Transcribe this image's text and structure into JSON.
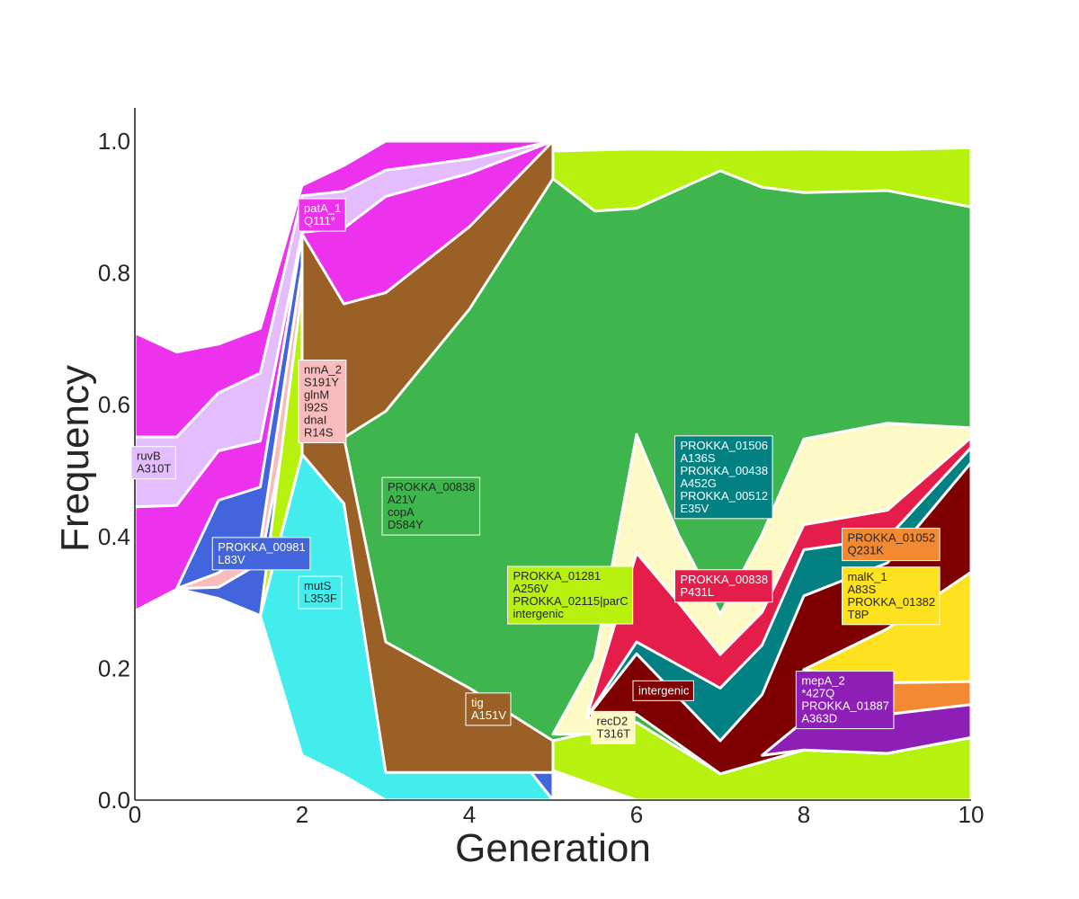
{
  "chart_data": {
    "type": "area",
    "title": "",
    "xlabel": "Generation",
    "ylabel": "Frequency",
    "xlim": [
      0,
      10
    ],
    "ylim": [
      0,
      1.05
    ],
    "xticks": [
      "0",
      "2",
      "4",
      "6",
      "8",
      "10"
    ],
    "yticks": [
      "0.0",
      "0.2",
      "0.4",
      "0.6",
      "0.8",
      "1.0"
    ],
    "grid": false,
    "clones": [
      {
        "id": "ruvB",
        "color": "#ec32ec",
        "upper": [
          [
            0,
            0.709
          ],
          [
            0.5,
            0.68
          ],
          [
            1,
            0.692
          ],
          [
            1.5,
            0.716
          ],
          [
            2,
            0.933
          ],
          [
            2.5,
            0.963
          ],
          [
            3,
            1.0
          ],
          [
            4,
            1.0
          ],
          [
            5,
            1.0
          ]
        ],
        "lower": [
          [
            0,
            0.287
          ],
          [
            0.5,
            0.32
          ],
          [
            1,
            0.306
          ],
          [
            1.5,
            0.28
          ],
          [
            2,
            0.068
          ],
          [
            2.5,
            0.037
          ],
          [
            3,
            0.0
          ],
          [
            4,
            0.0
          ],
          [
            5,
            0.0
          ]
        ]
      },
      {
        "id": "patA",
        "color": "#e3bdfd",
        "upper": [
          [
            0,
            0.551
          ],
          [
            0.5,
            0.551
          ],
          [
            1,
            0.618
          ],
          [
            1.5,
            0.648
          ],
          [
            2,
            0.917
          ],
          [
            2.5,
            0.924
          ],
          [
            3,
            0.956
          ],
          [
            4,
            0.973
          ],
          [
            5,
            1.0
          ]
        ],
        "lower": [
          [
            0,
            0.445
          ],
          [
            0.5,
            0.447
          ],
          [
            1,
            0.53
          ],
          [
            1.5,
            0.545
          ],
          [
            2,
            0.862
          ],
          [
            2.5,
            0.868
          ],
          [
            3,
            0.916
          ],
          [
            4,
            0.951
          ],
          [
            5,
            1.0
          ]
        ]
      },
      {
        "id": "cyan",
        "color": "#44eded",
        "upper": [
          [
            1.5,
            0.28
          ],
          [
            2,
            0.525
          ],
          [
            2.5,
            0.45
          ],
          [
            3,
            0.188
          ],
          [
            4,
            0.16
          ],
          [
            5,
            0.0
          ]
        ],
        "lower": [
          [
            1.5,
            0.28
          ],
          [
            2,
            0.068
          ],
          [
            2.5,
            0.037
          ],
          [
            3,
            0.0
          ],
          [
            4,
            0.0
          ],
          [
            5,
            0.0
          ],
          [
            5.95,
            0.0
          ]
        ]
      },
      {
        "id": "blue",
        "color": "#4264dc",
        "upper": [
          [
            0.5,
            0.321
          ],
          [
            1,
            0.455
          ],
          [
            1.5,
            0.475
          ],
          [
            2,
            0.859
          ],
          [
            2.5,
            0.722
          ],
          [
            3,
            0.752
          ],
          [
            4,
            0.866
          ],
          [
            5,
            1.0
          ]
        ],
        "lower": [
          [
            0.5,
            0.321
          ],
          [
            1,
            0.306
          ],
          [
            1.5,
            0.28
          ],
          [
            2,
            0.525
          ],
          [
            2.5,
            0.45
          ],
          [
            3,
            0.188
          ],
          [
            4,
            0.16
          ],
          [
            5,
            0.0
          ]
        ]
      },
      {
        "id": "pink",
        "color": "#f8bcbc",
        "upper": [
          [
            0.5,
            0.321
          ],
          [
            1,
            0.345
          ],
          [
            1.5,
            0.39
          ],
          [
            2,
            0.81
          ],
          [
            2.5,
            0.72
          ],
          [
            3,
            0.74
          ],
          [
            4,
            0.846
          ],
          [
            5,
            1.0
          ]
        ],
        "lower": [
          [
            0.5,
            0.321
          ],
          [
            1,
            0.323
          ],
          [
            1.5,
            0.36
          ],
          [
            2,
            0.69
          ],
          [
            2.5,
            0.55
          ],
          [
            3,
            0.595
          ],
          [
            4,
            0.743
          ],
          [
            5,
            0.94
          ]
        ]
      },
      {
        "id": "lime",
        "color": "#b6f20d",
        "upper": [
          [
            1.5,
            0.28
          ],
          [
            2,
            0.776
          ],
          [
            2.5,
            0.55
          ],
          [
            3,
            0.627
          ],
          [
            4,
            0.78
          ],
          [
            5,
            0.985
          ],
          [
            6,
            0.988
          ],
          [
            7,
            0.987
          ],
          [
            8,
            0.988
          ],
          [
            9,
            0.987
          ],
          [
            10,
            0.99
          ]
        ],
        "lower": [
          [
            1.5,
            0.28
          ],
          [
            2,
            0.525
          ],
          [
            2.5,
            0.45
          ],
          [
            3,
            0.188
          ],
          [
            4,
            0.16
          ],
          [
            5,
            0.045
          ],
          [
            6,
            0.0
          ],
          [
            7,
            0.0
          ],
          [
            8,
            0.0
          ],
          [
            9,
            0.0
          ],
          [
            10,
            0.0
          ]
        ]
      },
      {
        "id": "tig",
        "color": "#9a6025",
        "upper": [
          [
            2,
            0.859
          ],
          [
            2.5,
            0.753
          ],
          [
            3,
            0.77
          ],
          [
            4,
            0.87
          ],
          [
            5,
            1.0
          ]
        ],
        "lower": [
          [
            2,
            0.525
          ],
          [
            2.5,
            0.45
          ],
          [
            3,
            0.042
          ],
          [
            4,
            0.042
          ],
          [
            5,
            0.042
          ]
        ]
      },
      {
        "id": "green",
        "color": "#3fb54e",
        "upper": [
          [
            2.5,
            0.55
          ],
          [
            3,
            0.59
          ],
          [
            4,
            0.745
          ],
          [
            5,
            0.943
          ],
          [
            5.5,
            0.894
          ],
          [
            6,
            0.898
          ],
          [
            7,
            0.955
          ],
          [
            7.5,
            0.93
          ],
          [
            8,
            0.922
          ],
          [
            9,
            0.925
          ],
          [
            10,
            0.9
          ]
        ],
        "lower": [
          [
            2.5,
            0.55
          ],
          [
            3,
            0.24
          ],
          [
            4,
            0.17
          ],
          [
            5,
            0.09
          ],
          [
            6,
            0.118
          ],
          [
            7,
            0.04
          ],
          [
            8,
            0.076
          ],
          [
            9,
            0.071
          ],
          [
            10,
            0.095
          ]
        ]
      },
      {
        "id": "yellow",
        "color": "#fefac6",
        "upper": [
          [
            5,
            0.1
          ],
          [
            5.5,
            0.215
          ],
          [
            6,
            0.555
          ],
          [
            6.5,
            0.403
          ],
          [
            7,
            0.282
          ],
          [
            7.5,
            0.403
          ],
          [
            8,
            0.548
          ],
          [
            9,
            0.572
          ],
          [
            10,
            0.565
          ]
        ],
        "lower": [
          [
            5,
            0.1
          ],
          [
            5.5,
            0.1
          ],
          [
            6,
            0.2
          ],
          [
            7,
            0.04
          ],
          [
            8,
            0.076
          ],
          [
            9,
            0.071
          ],
          [
            10,
            0.095
          ]
        ]
      },
      {
        "id": "crimson",
        "color": "#e51d4b",
        "upper": [
          [
            5.4,
            0.125
          ],
          [
            6,
            0.375
          ],
          [
            6.5,
            0.3
          ],
          [
            7,
            0.221
          ],
          [
            7.5,
            0.285
          ],
          [
            8,
            0.418
          ],
          [
            9,
            0.44
          ],
          [
            10,
            0.55
          ]
        ],
        "lower": [
          [
            5.4,
            0.125
          ],
          [
            6,
            0.2
          ],
          [
            7,
            0.04
          ],
          [
            8,
            0.076
          ],
          [
            9,
            0.071
          ],
          [
            10,
            0.095
          ]
        ]
      },
      {
        "id": "teal",
        "color": "#028082",
        "upper": [
          [
            5.4,
            0.125
          ],
          [
            6,
            0.24
          ],
          [
            7,
            0.17
          ],
          [
            7.5,
            0.235
          ],
          [
            8,
            0.38
          ],
          [
            9,
            0.398
          ],
          [
            10,
            0.535
          ]
        ],
        "lower": [
          [
            5.4,
            0.125
          ],
          [
            6,
            0.2
          ],
          [
            7,
            0.04
          ],
          [
            8,
            0.076
          ],
          [
            9,
            0.071
          ],
          [
            10,
            0.095
          ]
        ]
      },
      {
        "id": "maroon",
        "color": "#7f0000",
        "upper": [
          [
            5.4,
            0.125
          ],
          [
            6,
            0.222
          ],
          [
            7,
            0.09
          ],
          [
            7.5,
            0.16
          ],
          [
            8,
            0.31
          ],
          [
            9,
            0.36
          ],
          [
            10,
            0.512
          ]
        ],
        "lower": [
          [
            5.4,
            0.125
          ],
          [
            6,
            0.13
          ],
          [
            7,
            0.04
          ],
          [
            8,
            0.076
          ],
          [
            9,
            0.071
          ],
          [
            10,
            0.095
          ]
        ]
      },
      {
        "id": "gold",
        "color": "#fee11f",
        "upper": [
          [
            8,
            0.198
          ],
          [
            9,
            0.26
          ],
          [
            10,
            0.346
          ]
        ],
        "lower": [
          [
            8,
            0.198
          ],
          [
            9,
            0.13
          ],
          [
            10,
            0.178
          ]
        ]
      },
      {
        "id": "orange",
        "color": "#f38a32",
        "upper": [
          [
            7.9,
            0.076
          ],
          [
            8,
            0.198
          ],
          [
            9,
            0.178
          ],
          [
            10,
            0.18
          ]
        ],
        "lower": [
          [
            7.9,
            0.076
          ],
          [
            9,
            0.13
          ],
          [
            10,
            0.145
          ]
        ]
      },
      {
        "id": "purple",
        "color": "#8d1fb6",
        "upper": [
          [
            7.5,
            0.068
          ],
          [
            8,
            0.12
          ],
          [
            9,
            0.13
          ],
          [
            10,
            0.145
          ]
        ],
        "lower": [
          [
            7.5,
            0.068
          ],
          [
            8,
            0.076
          ],
          [
            9,
            0.071
          ],
          [
            10,
            0.095
          ]
        ]
      }
    ],
    "annotations": [
      {
        "lines": [
          "patA_1",
          "Q111*"
        ],
        "x": 2.0,
        "y": 0.888,
        "bg": "#ec32ec",
        "fg": "#ffffff"
      },
      {
        "lines": [
          "nrnA_2",
          "S191Y",
          "glnM",
          "I92S",
          "dnaI",
          "R14S"
        ],
        "x": 2.0,
        "y": 0.605,
        "bg": "#f8bcbc",
        "fg": "#262626"
      },
      {
        "lines": [
          "ruvB",
          "A310T"
        ],
        "x": 0.0,
        "y": 0.512,
        "bg": "#e3bdfd",
        "fg": "#262626"
      },
      {
        "lines": [
          "PROKKA_00981",
          "L83V"
        ],
        "x": 0.97,
        "y": 0.374,
        "bg": "#4264dc",
        "fg": "#ffffff"
      },
      {
        "lines": [
          "mutS",
          "L353F"
        ],
        "x": 2.0,
        "y": 0.315,
        "bg": "#44eded",
        "fg": "#262626"
      },
      {
        "lines": [
          "PROKKA_00838",
          "A21V",
          "copA",
          "D584Y"
        ],
        "x": 3.0,
        "y": 0.446,
        "bg": "#3fb54e",
        "fg": "#262626"
      },
      {
        "lines": [
          "PROKKA_01281",
          "A256V",
          "PROKKA_02115|parC",
          "intergenic"
        ],
        "x": 4.5,
        "y": 0.311,
        "bg": "#b6f20d",
        "fg": "#262626"
      },
      {
        "lines": [
          "tig",
          "A151V"
        ],
        "x": 4.0,
        "y": 0.138,
        "bg": "#9a6025",
        "fg": "#ffffff"
      },
      {
        "lines": [
          "recD2",
          "T316T"
        ],
        "x": 5.5,
        "y": 0.11,
        "bg": "#fefac6",
        "fg": "#262626"
      },
      {
        "lines": [
          "intergenic"
        ],
        "x": 6.0,
        "y": 0.166,
        "bg": "#7f0000",
        "fg": "#ffffff"
      },
      {
        "lines": [
          "PROKKA_01506",
          "A136S",
          "PROKKA_00438",
          "A452G",
          "PROKKA_00512",
          "E35V"
        ],
        "x": 6.5,
        "y": 0.49,
        "bg": "#028082",
        "fg": "#ffffff"
      },
      {
        "lines": [
          "PROKKA_00838",
          "P431L"
        ],
        "x": 6.5,
        "y": 0.325,
        "bg": "#e51d4b",
        "fg": "#ffffff"
      },
      {
        "lines": [
          "PROKKA_01052",
          "Q231K"
        ],
        "x": 8.5,
        "y": 0.388,
        "bg": "#f38a32",
        "fg": "#262626"
      },
      {
        "lines": [
          "malK_1",
          "A83S",
          "PROKKA_01382",
          "T8P"
        ],
        "x": 8.5,
        "y": 0.31,
        "bg": "#fee11f",
        "fg": "#262626"
      },
      {
        "lines": [
          "mepA_2",
          "*427Q",
          "PROKKA_01887",
          "A363D"
        ],
        "x": 7.95,
        "y": 0.152,
        "bg": "#8d1fb6",
        "fg": "#ffffff"
      }
    ]
  }
}
